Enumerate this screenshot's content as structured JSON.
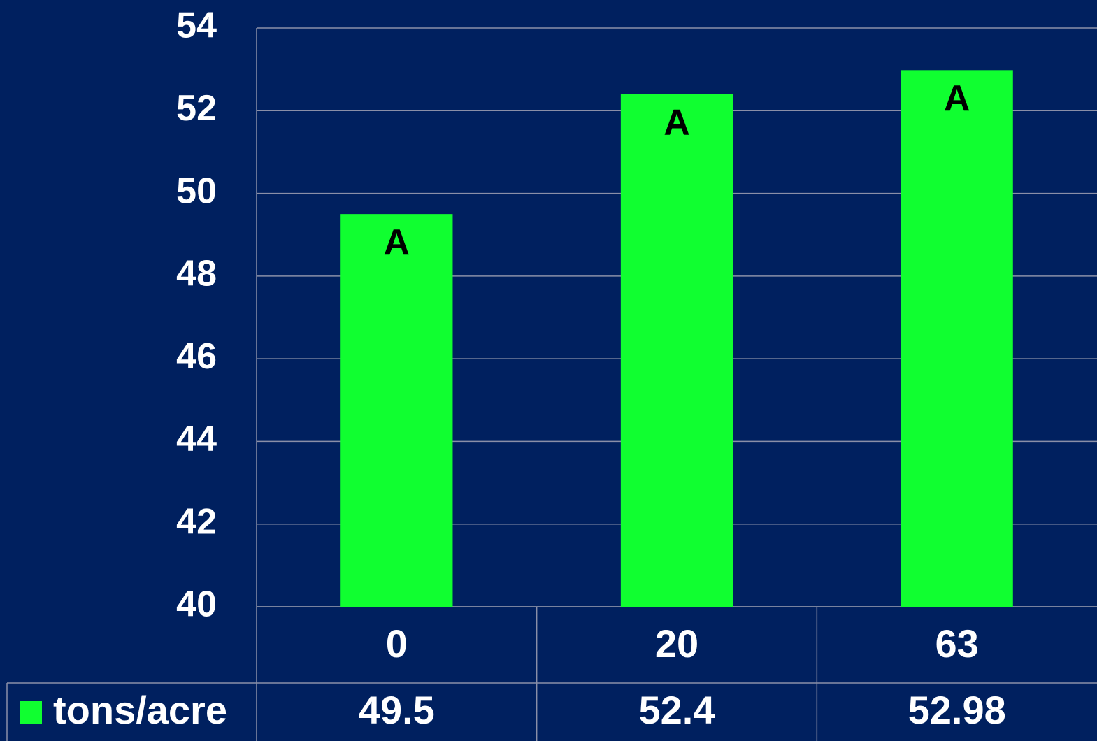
{
  "chart_data": {
    "type": "bar",
    "categories": [
      "0",
      "20",
      "63"
    ],
    "series": [
      {
        "name": "tons/acre",
        "color": "#10ff30",
        "values": [
          49.5,
          52.4,
          52.98
        ]
      }
    ],
    "bar_labels": [
      "A",
      "A",
      "A"
    ],
    "ylim": [
      40,
      54
    ],
    "yticks": [
      40,
      42,
      44,
      46,
      48,
      50,
      52,
      54
    ],
    "grid": true
  }
}
